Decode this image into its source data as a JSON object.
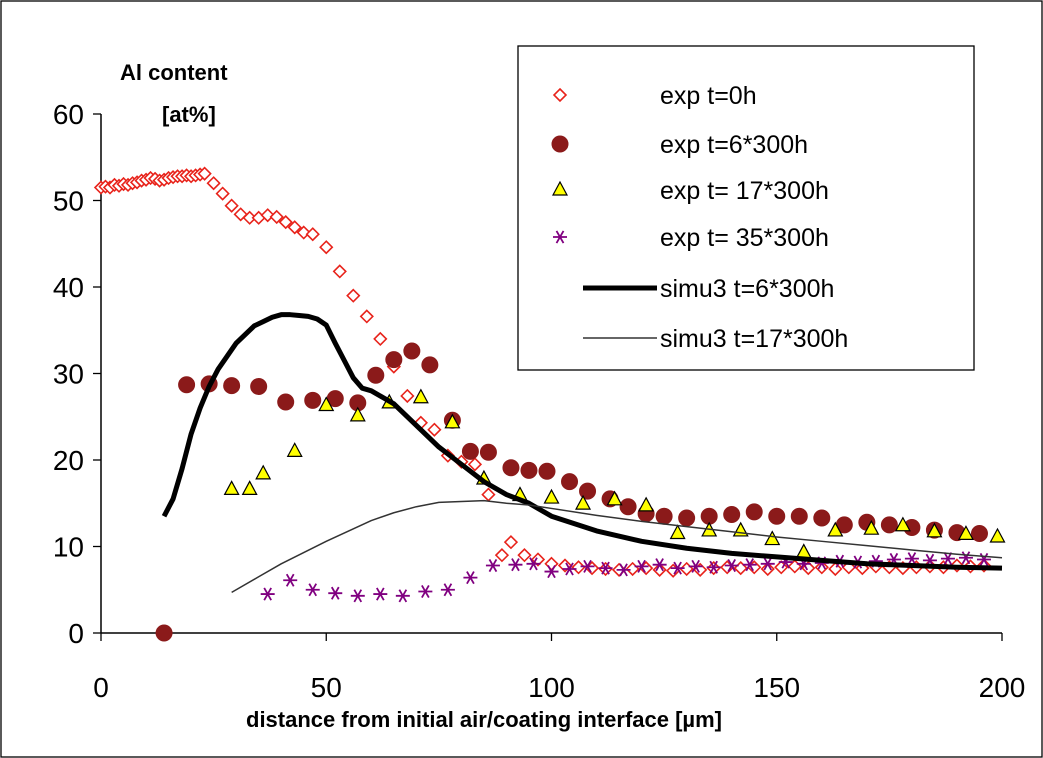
{
  "chart_data": {
    "type": "scatter",
    "title": "",
    "xlabel": "distance from initial air/coating interface [µm]",
    "ylabel_line1": "Al content",
    "ylabel_line2": "[at%]",
    "xlim": [
      0,
      200
    ],
    "ylim": [
      0,
      60
    ],
    "x_ticks": [
      0,
      50,
      100,
      150,
      200
    ],
    "y_ticks": [
      0,
      10,
      20,
      30,
      40,
      50,
      60
    ],
    "grid": false,
    "legend_position": "top-right",
    "colors": {
      "exp_t0": "#e8231b",
      "exp_t6": "#8b1a1a",
      "exp_t17": "#ffff00",
      "exp_t35": "#800080",
      "simu": "#000000",
      "simu_thin": "#333333"
    },
    "series": [
      {
        "name": "exp t=0h",
        "marker": "diamond-open",
        "color": "#e8231b",
        "x": [
          0,
          1,
          2,
          3,
          4,
          5,
          6,
          7,
          8,
          9,
          10,
          11,
          12,
          13,
          14,
          15,
          16,
          17,
          18,
          19,
          20,
          21,
          22,
          23,
          25,
          27,
          29,
          31,
          33,
          35,
          37,
          39,
          41,
          43,
          45,
          47,
          50,
          53,
          56,
          59,
          62,
          65,
          68,
          71,
          74,
          77,
          80,
          83,
          86,
          89,
          91,
          94,
          97,
          100,
          103,
          106,
          109,
          112,
          115,
          118,
          121,
          124,
          127,
          130,
          133,
          136,
          139,
          142,
          145,
          148,
          151,
          154,
          157,
          160,
          163,
          166,
          169,
          172,
          175,
          178,
          181,
          184,
          187,
          190,
          193,
          196
        ],
        "y": [
          51.5,
          51.6,
          51.5,
          51.8,
          51.7,
          51.9,
          51.8,
          52.0,
          52.1,
          52.3,
          52.4,
          52.6,
          52.5,
          52.3,
          52.4,
          52.6,
          52.7,
          52.8,
          52.8,
          52.9,
          52.8,
          52.9,
          53.0,
          53.1,
          52.0,
          50.8,
          49.4,
          48.4,
          48.0,
          48.0,
          48.3,
          48.1,
          47.5,
          46.9,
          46.3,
          46.1,
          44.6,
          41.8,
          39.0,
          36.6,
          34.0,
          30.8,
          27.4,
          24.3,
          23.5,
          20.5,
          19.8,
          19.5,
          16.0,
          9.0,
          10.5,
          9.0,
          8.5,
          8.0,
          7.8,
          7.6,
          7.5,
          7.4,
          7.3,
          7.4,
          7.5,
          7.3,
          7.2,
          7.4,
          7.3,
          7.5,
          7.6,
          7.5,
          7.6,
          7.4,
          7.6,
          7.7,
          7.5,
          7.6,
          7.4,
          7.6,
          7.5,
          7.7,
          7.6,
          7.5,
          7.6,
          7.7,
          7.6,
          7.8,
          7.7,
          7.8
        ]
      },
      {
        "name": "exp t=6*300h",
        "marker": "circle-filled",
        "color": "#8b1a1a",
        "x": [
          14,
          19,
          24,
          29,
          35,
          41,
          47,
          52,
          57,
          61,
          65,
          69,
          73,
          78,
          82,
          86,
          91,
          95,
          99,
          104,
          108,
          113,
          117,
          121,
          125,
          130,
          135,
          140,
          145,
          150,
          155,
          160,
          165,
          170,
          175,
          180,
          185,
          190,
          195
        ],
        "y": [
          0,
          28.7,
          28.8,
          28.6,
          28.5,
          26.7,
          26.9,
          27.1,
          26.6,
          29.8,
          31.6,
          32.6,
          31.0,
          24.6,
          21.0,
          20.9,
          19.1,
          18.8,
          18.7,
          17.5,
          16.4,
          15.5,
          14.6,
          13.8,
          13.5,
          13.3,
          13.5,
          13.7,
          14.0,
          13.5,
          13.5,
          13.3,
          12.5,
          12.8,
          12.5,
          12.2,
          11.9,
          11.6,
          11.5
        ]
      },
      {
        "name": "exp t= 17*300h",
        "marker": "triangle-filled",
        "color": "#ffff00",
        "x": [
          29,
          33,
          36,
          43,
          50,
          57,
          64,
          71,
          78,
          85,
          93,
          100,
          107,
          114,
          121,
          128,
          135,
          142,
          149,
          156,
          163,
          171,
          178,
          185,
          192,
          199
        ],
        "y": [
          16.6,
          16.6,
          18.4,
          21.0,
          26.3,
          25.1,
          26.6,
          27.2,
          24.3,
          17.8,
          15.9,
          15.6,
          14.9,
          15.4,
          14.7,
          11.5,
          11.8,
          11.8,
          10.8,
          9.3,
          11.8,
          12.0,
          12.4,
          11.7,
          11.4,
          11.1
        ]
      },
      {
        "name": "exp t= 35*300h",
        "marker": "asterisk",
        "color": "#800080",
        "x": [
          37,
          42,
          47,
          52,
          57,
          62,
          67,
          72,
          77,
          82,
          87,
          92,
          96,
          100,
          104,
          108,
          112,
          116,
          120,
          124,
          128,
          132,
          136,
          140,
          144,
          148,
          152,
          156,
          160,
          164,
          168,
          172,
          176,
          180,
          184,
          188,
          192,
          196
        ],
        "y": [
          4.5,
          6.1,
          5.0,
          4.6,
          4.3,
          4.5,
          4.3,
          4.8,
          5.0,
          6.4,
          7.8,
          7.9,
          8.0,
          7.1,
          7.4,
          7.7,
          7.5,
          7.3,
          7.7,
          7.9,
          7.5,
          7.7,
          7.6,
          7.8,
          7.9,
          8.0,
          8.2,
          8.0,
          8.1,
          8.3,
          8.2,
          8.3,
          8.5,
          8.6,
          8.4,
          8.6,
          8.7,
          8.5
        ]
      },
      {
        "name": "simu3 t=6*300h",
        "line": "thick",
        "color": "#000000",
        "x": [
          14,
          16,
          18,
          20,
          22,
          24,
          26,
          28,
          30,
          32,
          34,
          36,
          38,
          40,
          42,
          44,
          46,
          48,
          50,
          52,
          54,
          56,
          58,
          60,
          65,
          70,
          75,
          80,
          85,
          90,
          95,
          100,
          110,
          120,
          130,
          140,
          150,
          160,
          170,
          180,
          190,
          200
        ],
        "y": [
          13.5,
          15.5,
          19.0,
          23.0,
          26.0,
          28.5,
          30.5,
          32.0,
          33.5,
          34.5,
          35.5,
          36.0,
          36.5,
          36.8,
          36.8,
          36.7,
          36.6,
          36.3,
          35.6,
          33.5,
          31.5,
          29.5,
          28.3,
          28.0,
          26.5,
          24.0,
          21.5,
          19.5,
          17.5,
          16.0,
          15.0,
          13.5,
          11.8,
          10.6,
          9.8,
          9.2,
          8.8,
          8.4,
          8.0,
          7.8,
          7.6,
          7.5
        ]
      },
      {
        "name": "simu3 t=17*300h",
        "line": "thin",
        "color": "#333333",
        "x": [
          29,
          35,
          40,
          45,
          50,
          55,
          60,
          65,
          70,
          75,
          80,
          85,
          90,
          95,
          100,
          110,
          120,
          130,
          140,
          150,
          160,
          170,
          180,
          190,
          200
        ],
        "y": [
          4.7,
          6.5,
          8.0,
          9.3,
          10.6,
          11.8,
          13.0,
          13.9,
          14.6,
          15.1,
          15.2,
          15.3,
          15.0,
          14.8,
          14.4,
          13.6,
          12.9,
          12.3,
          11.7,
          11.1,
          10.6,
          10.1,
          9.6,
          9.1,
          8.7
        ]
      }
    ]
  }
}
